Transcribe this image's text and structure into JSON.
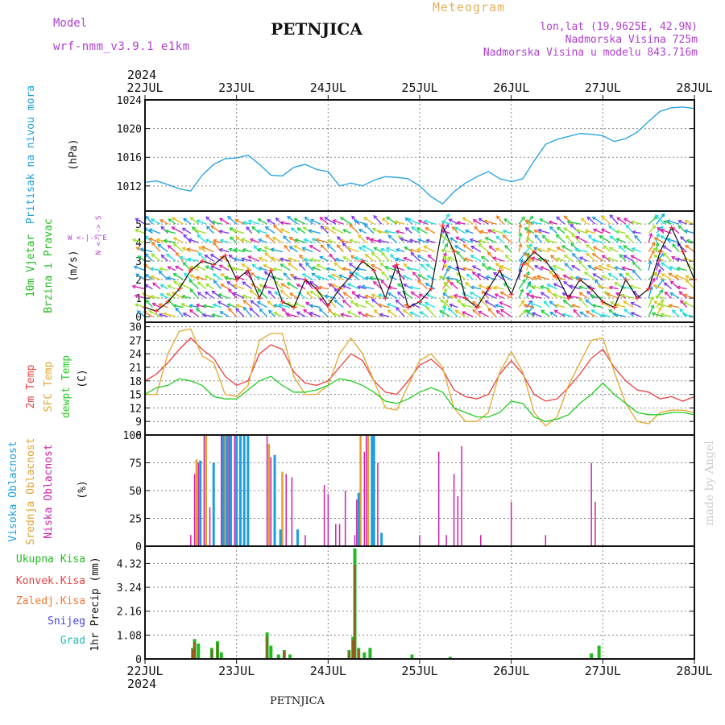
{
  "header": {
    "title": "PETNJICA",
    "subtitle": "Meteogram",
    "model_label": "Model",
    "model_name": "wrf-nmm_v3.9.1 e1km",
    "location": "lon,lat (19.9625E, 42.9N)",
    "elevation": "Nadmorska Visina 725m",
    "model_elevation": "Nadmorska Visina u modelu 843.716m",
    "footer": "PETNJICA",
    "credit": "made by Angel"
  },
  "colors": {
    "pressure": "#1ea0e0",
    "temp2m": "#e84040",
    "sfc": "#e0a830",
    "dewpt": "#22cc22",
    "low_cloud": "#cc22aa",
    "mid_cloud": "#e0a030",
    "high_cloud": "#1e9ee0",
    "total_precip": "#22bb22",
    "conv_precip": "#e84040",
    "frozen_precip": "#f07830",
    "snow": "#4444dd",
    "hail": "#22bbbb",
    "label_purple": "#b040d0",
    "label_gold": "#e0b060"
  },
  "time_axis": {
    "year": "2024",
    "labels": [
      "22JUL",
      "23JUL",
      "24JUL",
      "25JUL",
      "26JUL",
      "27JUL",
      "28JUL"
    ]
  },
  "chart_data": [
    {
      "type": "line",
      "title": "Pritisak na nivou mora",
      "ylabel": "(hPa)",
      "ylim": [
        1008.5,
        1024
      ],
      "yticks": [
        "1024",
        "1020",
        "1016",
        "1012"
      ],
      "grid": true,
      "series": [
        {
          "name": "Pritisak na nivou mora",
          "x": [
            0,
            3,
            6,
            9,
            12,
            15,
            18,
            21,
            24,
            27,
            30,
            33,
            36,
            39,
            42,
            45,
            48,
            51,
            54,
            57,
            60,
            63,
            66,
            69,
            72,
            75,
            78,
            81,
            84,
            87,
            90,
            93,
            96,
            99,
            102,
            105,
            108,
            111,
            114,
            117,
            120,
            123,
            126,
            129,
            132,
            135,
            138,
            141,
            144
          ],
          "values": [
            1012.5,
            1012.7,
            1012.2,
            1011.6,
            1011.3,
            1013.5,
            1015.0,
            1015.8,
            1015.9,
            1016.3,
            1015.0,
            1013.5,
            1013.4,
            1014.6,
            1015.0,
            1014.3,
            1014.0,
            1012.0,
            1012.4,
            1012.0,
            1012.8,
            1013.3,
            1013.2,
            1013.0,
            1012.0,
            1010.5,
            1009.5,
            1011.2,
            1012.4,
            1013.3,
            1014.0,
            1013.0,
            1012.6,
            1013.0,
            1015.5,
            1017.8,
            1018.5,
            1018.9,
            1019.3,
            1019.2,
            1019.0,
            1018.2,
            1018.6,
            1019.5,
            1021.0,
            1022.4,
            1022.9,
            1023.0,
            1022.8
          ]
        }
      ]
    },
    {
      "type": "line",
      "title": "10m Vjetar Brzina i Pravac",
      "ylabel": "(m/s)",
      "ylim": [
        -0.3,
        5.7
      ],
      "yticks": [
        "5",
        "4",
        "3",
        "2",
        "1",
        "0"
      ],
      "compass": "W <-|-> E",
      "compass_v": "N <-|-> S",
      "grid": true,
      "series": [
        {
          "name": "10m Vjetar",
          "x": [
            0,
            3,
            6,
            9,
            12,
            15,
            18,
            21,
            24,
            27,
            30,
            33,
            36,
            39,
            42,
            45,
            48,
            51,
            54,
            57,
            60,
            63,
            66,
            69,
            72,
            75,
            78,
            81,
            84,
            87,
            90,
            93,
            96,
            99,
            102,
            105,
            108,
            111,
            114,
            117,
            120,
            123,
            126,
            129,
            132,
            135,
            138,
            141,
            144
          ],
          "values": [
            0.5,
            0.3,
            0.8,
            1.5,
            2.5,
            3.0,
            2.8,
            3.3,
            2.0,
            2.5,
            1.0,
            2.5,
            0.8,
            0.5,
            2.0,
            1.5,
            0.6,
            1.5,
            2.2,
            3.0,
            2.5,
            1.0,
            2.8,
            0.5,
            0.8,
            1.5,
            4.9,
            3.5,
            1.0,
            0.5,
            1.5,
            2.5,
            1.2,
            2.8,
            3.5,
            3.0,
            2.2,
            1.0,
            2.0,
            1.5,
            0.8,
            0.5,
            2.0,
            1.0,
            1.5,
            3.5,
            4.8,
            3.5,
            2.0
          ]
        }
      ]
    },
    {
      "type": "line",
      "title": "2m Temp / SFC Temp / dewpt Temp",
      "ylabel": "(C)",
      "ylim": [
        6,
        31
      ],
      "yticks": [
        "30",
        "27",
        "24",
        "21",
        "18",
        "15",
        "12",
        "9",
        "6"
      ],
      "grid": true,
      "series": [
        {
          "name": "2m Temp",
          "x": [
            0,
            3,
            6,
            9,
            12,
            15,
            18,
            21,
            24,
            27,
            30,
            33,
            36,
            39,
            42,
            45,
            48,
            51,
            54,
            57,
            60,
            63,
            66,
            69,
            72,
            75,
            78,
            81,
            84,
            87,
            90,
            93,
            96,
            99,
            102,
            105,
            108,
            111,
            114,
            117,
            120,
            123,
            126,
            129,
            132,
            135,
            138,
            141,
            144
          ],
          "values": [
            18,
            19.5,
            22,
            25,
            27.5,
            25,
            23,
            19,
            17,
            18,
            24,
            26,
            25,
            20,
            17.5,
            17,
            18,
            21,
            24,
            22.5,
            18,
            15.5,
            15,
            18,
            21.5,
            22.8,
            20.5,
            16,
            14.5,
            14,
            15,
            19.5,
            22.5,
            19.5,
            15,
            13.5,
            14,
            16.5,
            19.5,
            23,
            25,
            21,
            18,
            16,
            15.5,
            14,
            14.5,
            13.5,
            14.5
          ]
        },
        {
          "name": "SFC Temp",
          "x": [
            0,
            3,
            6,
            9,
            12,
            15,
            18,
            21,
            24,
            27,
            30,
            33,
            36,
            39,
            42,
            45,
            48,
            51,
            54,
            57,
            60,
            63,
            66,
            69,
            72,
            75,
            78,
            81,
            84,
            87,
            90,
            93,
            96,
            99,
            102,
            105,
            108,
            111,
            114,
            117,
            120,
            123,
            126,
            129,
            132,
            135,
            138,
            141,
            144
          ],
          "values": [
            15,
            15,
            24,
            29,
            29.5,
            23.5,
            22,
            15,
            14.5,
            17,
            27,
            28.5,
            28.5,
            19,
            15,
            15,
            17,
            24,
            27.5,
            24,
            18,
            12,
            11.5,
            17,
            22.5,
            24,
            21,
            12,
            9,
            9,
            11,
            20,
            24.5,
            20,
            11,
            8,
            10,
            17,
            22,
            27,
            27.5,
            20,
            13,
            9,
            8.5,
            11,
            11.5,
            11.5,
            11
          ]
        },
        {
          "name": "dewpt Temp",
          "x": [
            0,
            3,
            6,
            9,
            12,
            15,
            18,
            21,
            24,
            27,
            30,
            33,
            36,
            39,
            42,
            45,
            48,
            51,
            54,
            57,
            60,
            63,
            66,
            69,
            72,
            75,
            78,
            81,
            84,
            87,
            90,
            93,
            96,
            99,
            102,
            105,
            108,
            111,
            114,
            117,
            120,
            123,
            126,
            129,
            132,
            135,
            138,
            141,
            144
          ],
          "values": [
            15,
            16.5,
            17,
            18.5,
            18,
            17,
            14.5,
            14,
            14,
            16,
            18,
            19,
            17,
            15.5,
            15.5,
            16,
            17,
            18.5,
            18,
            17,
            15.5,
            13.5,
            13,
            14,
            15.5,
            16.5,
            15.5,
            12,
            11,
            10,
            10,
            11,
            13.5,
            13,
            10,
            9,
            9.5,
            10.5,
            13,
            15,
            17.5,
            15,
            13,
            11,
            10.5,
            10.5,
            11,
            11,
            10.5
          ]
        }
      ]
    },
    {
      "type": "bar",
      "title": "Visoka / Srednja / Niska Oblacnost",
      "ylabel": "(%)",
      "ylim": [
        0,
        100
      ],
      "yticks": [
        "100",
        "75",
        "50",
        "25",
        "0"
      ],
      "grid": true,
      "series": [
        {
          "name": "Niska Oblacnost",
          "x": [
            12,
            13,
            14,
            15.5,
            17,
            20,
            22,
            23.5,
            32,
            33,
            37,
            38.5,
            42,
            47,
            48,
            50,
            51,
            52.5,
            55,
            55.5,
            57.5,
            58,
            61,
            72,
            77,
            79,
            81,
            82,
            83,
            88,
            96,
            105,
            117,
            118
          ],
          "values": [
            10,
            65,
            75,
            100,
            35,
            100,
            100,
            100,
            100,
            80,
            65,
            62,
            10,
            55,
            47,
            20,
            20,
            50,
            10,
            42,
            85,
            100,
            75,
            10,
            85,
            10,
            65,
            45,
            90,
            10,
            40,
            10,
            75,
            40
          ]
        },
        {
          "name": "Srednja Oblacnost",
          "x": [
            13.5,
            16,
            21,
            32.5,
            36,
            56.5,
            58.5
          ],
          "values": [
            78,
            100,
            100,
            92,
            67,
            100,
            100
          ]
        },
        {
          "name": "Visoka Oblacnost",
          "x": [
            14.5,
            18,
            20.5,
            21.5,
            22.5,
            24,
            25,
            26,
            27,
            34,
            35.5,
            40,
            56,
            59.5,
            60,
            62
          ],
          "values": [
            77,
            75,
            100,
            100,
            100,
            100,
            100,
            100,
            100,
            82,
            15,
            15,
            48,
            100,
            100,
            12
          ]
        }
      ]
    },
    {
      "type": "bar",
      "title": "1hr Precip",
      "ylabel": "1hr Precip (mm)",
      "ylim": [
        0,
        5.1
      ],
      "yticks": [
        "4.32",
        "3.24",
        "2.16",
        "1.08",
        "0"
      ],
      "grid": true,
      "series": [
        {
          "name": "Ukupna Kisa",
          "x": [
            12.5,
            13,
            14,
            17.5,
            19,
            20,
            32,
            33,
            35,
            36.5,
            38,
            53.5,
            54.5,
            55,
            56,
            57.5,
            59,
            70,
            80,
            117,
            119
          ],
          "values": [
            0.5,
            0.9,
            0.7,
            0.5,
            0.8,
            0.3,
            1.2,
            0.6,
            0.2,
            0.4,
            0.2,
            0.4,
            1.0,
            5.0,
            0.5,
            0.3,
            0.5,
            0.2,
            0.1,
            0.25,
            0.6
          ]
        },
        {
          "name": "Konvek.Kisa",
          "x": [
            12.5,
            13,
            17.5,
            19,
            32,
            36.5,
            53.5,
            54.5,
            55,
            56
          ],
          "values": [
            0.5,
            0.9,
            0.5,
            0.8,
            1.2,
            0.4,
            0.4,
            1.0,
            5.0,
            0.5
          ]
        },
        {
          "name": "Zaledj.Kisa",
          "x": [],
          "values": []
        },
        {
          "name": "Snijeg",
          "x": [],
          "values": []
        },
        {
          "name": "Grad",
          "x": [],
          "values": []
        }
      ]
    }
  ]
}
